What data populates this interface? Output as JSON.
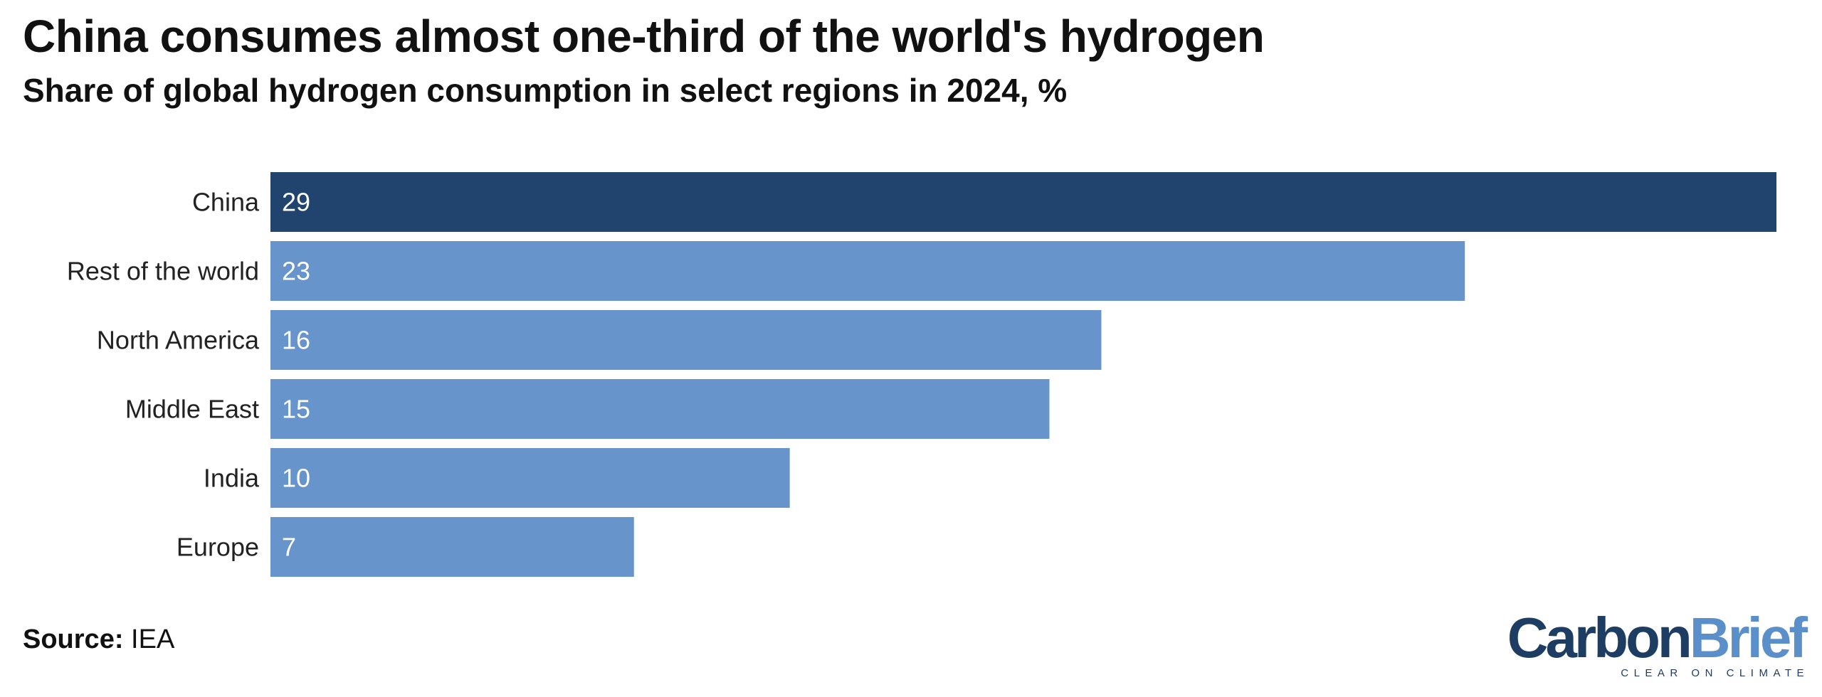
{
  "title": "China consumes almost one-third of the world's hydrogen",
  "subtitle": "Share of global hydrogen consumption in select regions in 2024, %",
  "source_label": "Source:",
  "source_value": "IEA",
  "logo": {
    "carbon": "Carbon",
    "brief": "Brief",
    "tagline": "CLEAR ON CLIMATE"
  },
  "colors": {
    "highlight": "#21446f",
    "default": "#6795cb",
    "label_text": "#ffffff"
  },
  "chart_data": {
    "type": "bar",
    "orientation": "horizontal",
    "categories": [
      "China",
      "Rest of the world",
      "North America",
      "Middle East",
      "India",
      "Europe"
    ],
    "values": [
      29,
      23,
      16,
      15,
      10,
      7
    ],
    "highlighted": [
      "China"
    ],
    "data_labels": "inside-left",
    "xlim": [
      0,
      29
    ],
    "grid": false,
    "legend": false
  }
}
